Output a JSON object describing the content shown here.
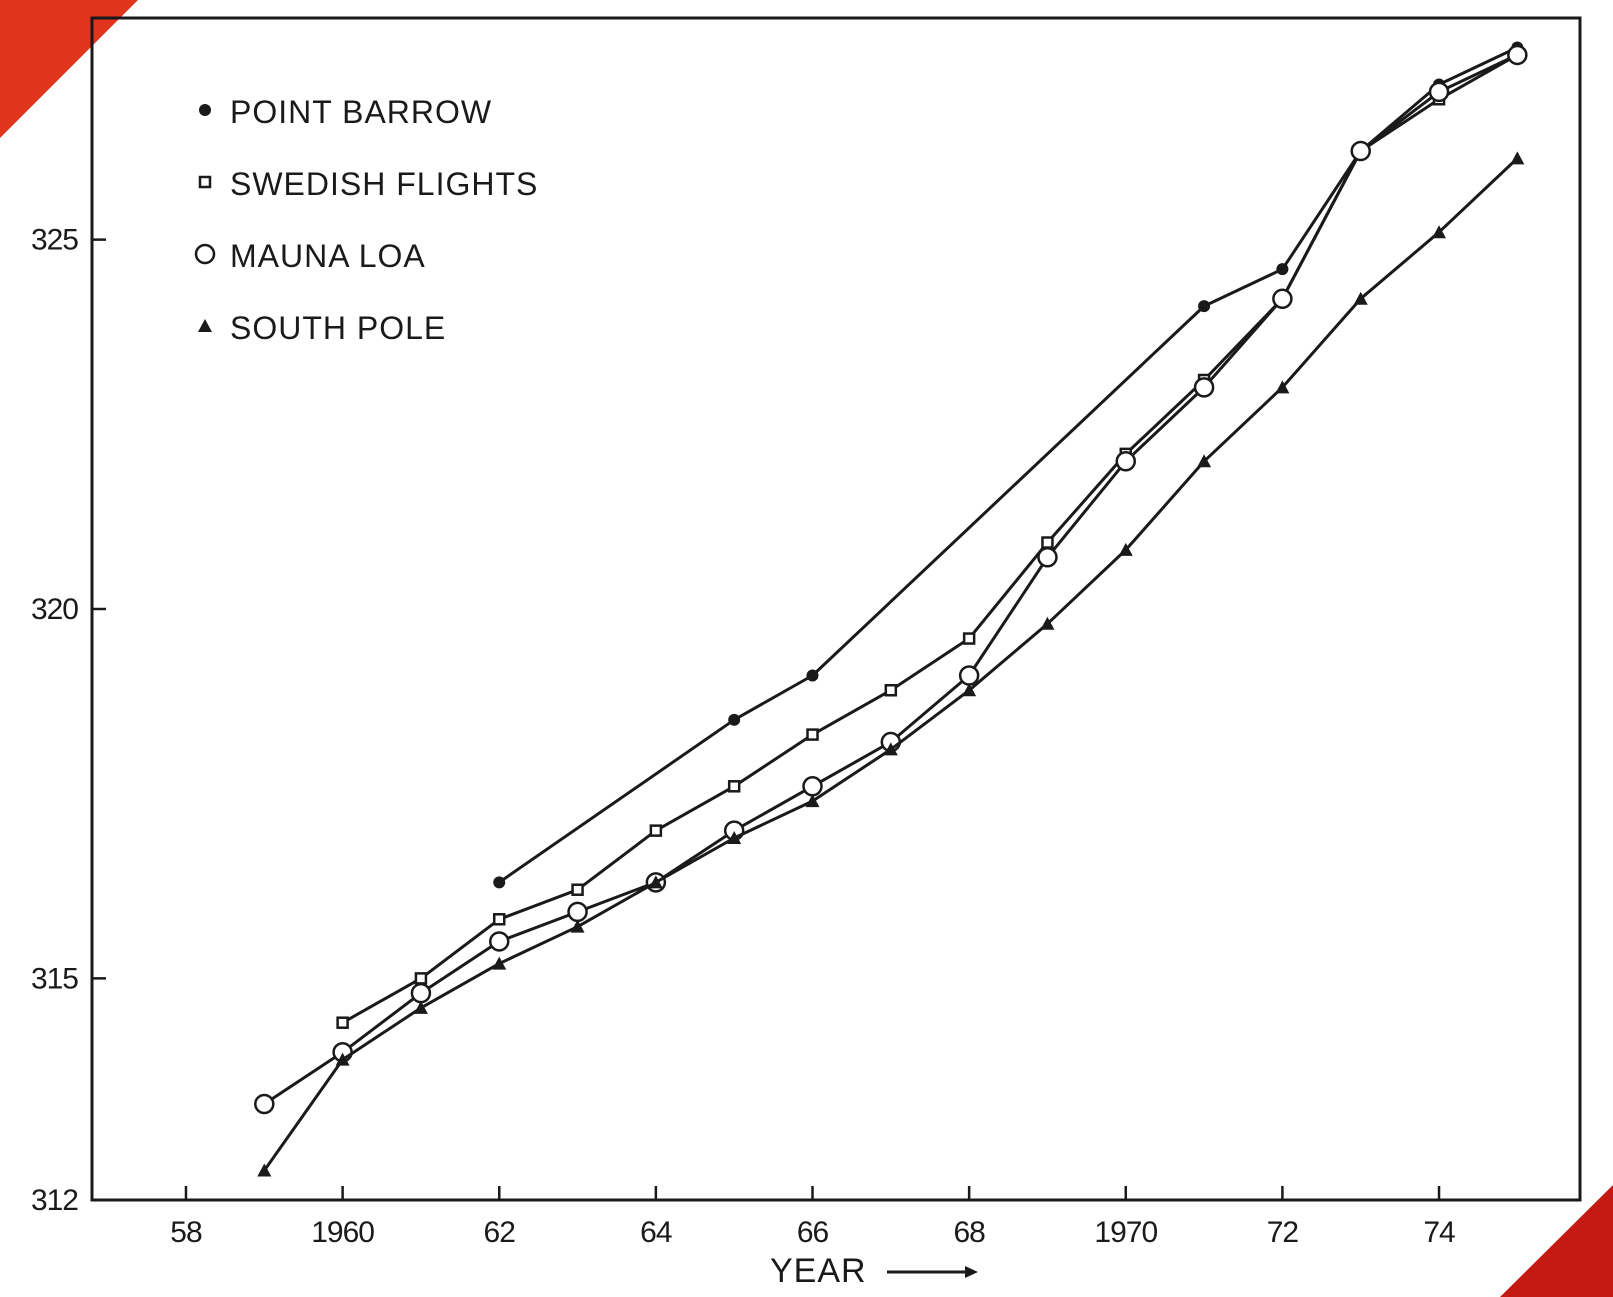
{
  "chart_data": {
    "type": "line",
    "title": "",
    "xlabel": "YEAR",
    "ylabel": "",
    "xlim": [
      1956.8,
      1975.8
    ],
    "ylim": [
      312,
      328
    ],
    "x_ticks": [
      {
        "value": 1958,
        "label": "58"
      },
      {
        "value": 1960,
        "label": "1960"
      },
      {
        "value": 1962,
        "label": "62"
      },
      {
        "value": 1964,
        "label": "64"
      },
      {
        "value": 1966,
        "label": "66"
      },
      {
        "value": 1968,
        "label": "68"
      },
      {
        "value": 1970,
        "label": "1970"
      },
      {
        "value": 1972,
        "label": "72"
      },
      {
        "value": 1974,
        "label": "74"
      }
    ],
    "y_ticks": [
      {
        "value": 312,
        "label": "312"
      },
      {
        "value": 315,
        "label": "315"
      },
      {
        "value": 320,
        "label": "320"
      },
      {
        "value": 325,
        "label": "325"
      }
    ],
    "grid": false,
    "legend_position": "top-left",
    "series": [
      {
        "name": "POINT BARROW",
        "marker": "filled-dot",
        "points": [
          [
            1962,
            316.3
          ],
          [
            1965,
            318.5
          ],
          [
            1966,
            319.1
          ],
          [
            1971,
            324.1
          ],
          [
            1972,
            324.6
          ],
          [
            1973,
            326.2
          ],
          [
            1974,
            327.1
          ],
          [
            1975,
            327.6
          ]
        ]
      },
      {
        "name": "SWEDISH FLIGHTS",
        "marker": "small-square",
        "points": [
          [
            1960,
            314.4
          ],
          [
            1961,
            315.0
          ],
          [
            1962,
            315.8
          ],
          [
            1963,
            316.2
          ],
          [
            1964,
            317.0
          ],
          [
            1965,
            317.6
          ],
          [
            1966,
            318.3
          ],
          [
            1967,
            318.9
          ],
          [
            1968,
            319.6
          ],
          [
            1969,
            320.9
          ],
          [
            1970,
            322.1
          ],
          [
            1971,
            323.1
          ],
          [
            1972,
            324.2
          ],
          [
            1973,
            326.2
          ],
          [
            1974,
            326.9
          ],
          [
            1975,
            327.5
          ]
        ]
      },
      {
        "name": "MAUNA LOA",
        "marker": "open-circle",
        "points": [
          [
            1959,
            313.3
          ],
          [
            1960,
            314.0
          ],
          [
            1961,
            314.8
          ],
          [
            1962,
            315.5
          ],
          [
            1963,
            315.9
          ],
          [
            1964,
            316.3
          ],
          [
            1965,
            317.0
          ],
          [
            1966,
            317.6
          ],
          [
            1967,
            318.2
          ],
          [
            1968,
            319.1
          ],
          [
            1969,
            320.7
          ],
          [
            1970,
            322.0
          ],
          [
            1971,
            323.0
          ],
          [
            1972,
            324.2
          ],
          [
            1973,
            326.2
          ],
          [
            1974,
            327.0
          ],
          [
            1975,
            327.5
          ]
        ]
      },
      {
        "name": "SOUTH POLE",
        "marker": "small-triangle",
        "points": [
          [
            1959,
            312.4
          ],
          [
            1960,
            313.9
          ],
          [
            1961,
            314.6
          ],
          [
            1962,
            315.2
          ],
          [
            1963,
            315.7
          ],
          [
            1964,
            316.3
          ],
          [
            1965,
            316.9
          ],
          [
            1966,
            317.4
          ],
          [
            1967,
            318.1
          ],
          [
            1968,
            318.9
          ],
          [
            1969,
            319.8
          ],
          [
            1970,
            320.8
          ],
          [
            1971,
            322.0
          ],
          [
            1972,
            323.0
          ],
          [
            1973,
            324.2
          ],
          [
            1974,
            325.1
          ],
          [
            1975,
            326.1
          ]
        ]
      }
    ],
    "colors": {
      "ink": "#1a1a1a",
      "corner_accent": "#e0341e"
    }
  }
}
